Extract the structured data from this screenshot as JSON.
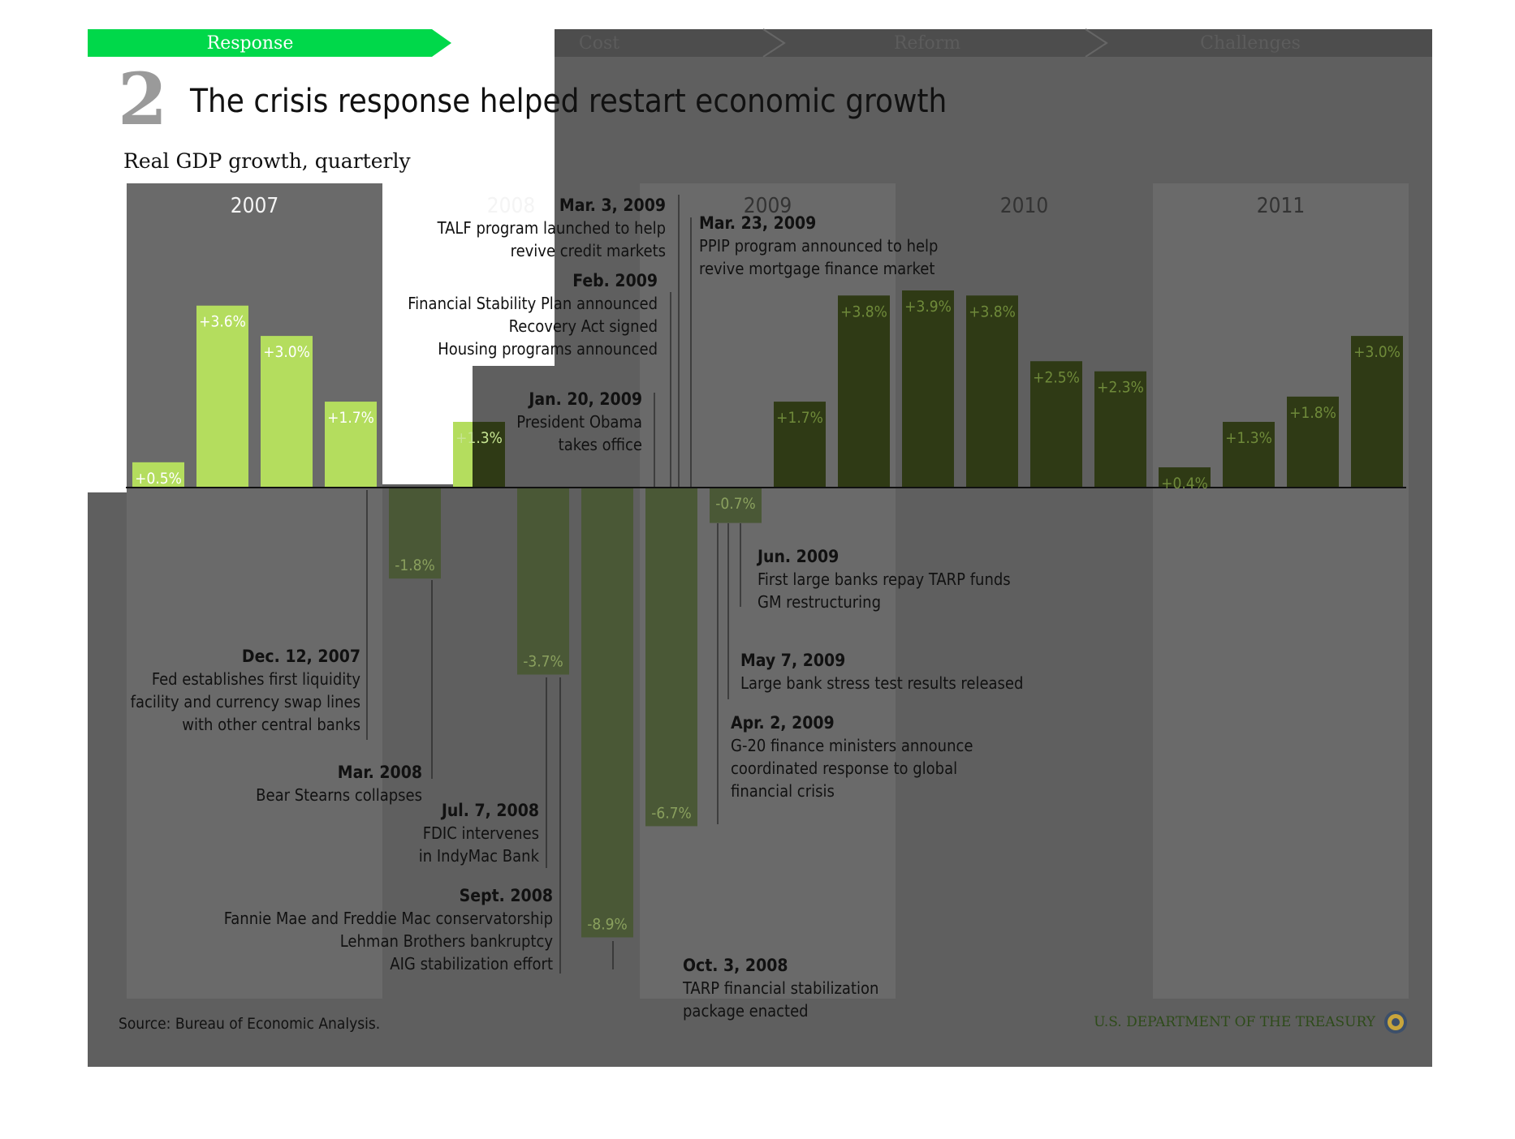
{
  "nav": {
    "tabs": [
      {
        "label": "Response",
        "active": true
      },
      {
        "label": "Cost",
        "active": false
      },
      {
        "label": "Reform",
        "active": false
      },
      {
        "label": "Challenges",
        "active": false
      }
    ]
  },
  "header": {
    "number": "2",
    "title": "The crisis response helped restart economic growth"
  },
  "footer": {
    "source": "Source: Bureau of Economic Analysis.",
    "brand": "U.S. DEPARTMENT OF THE TREASURY"
  },
  "colors": {
    "accent_green": "#00d84a",
    "bar_light": "#b4dd5e",
    "bar_dark": "#2f3a15",
    "overlay": "#5f5f5f",
    "year_panel": "#6a6a6a"
  },
  "chart_data": {
    "type": "bar",
    "title": "",
    "subtitle": "Real GDP growth, quarterly",
    "xlabel": "",
    "ylabel": "",
    "ylim": [
      -9.5,
      4.5
    ],
    "year_groups": [
      "2007",
      "2008",
      "2009",
      "2010",
      "2011"
    ],
    "series": [
      {
        "name": "",
        "values": [
          0.5,
          3.6,
          3.0,
          1.7,
          -1.8,
          1.3,
          -3.7,
          -8.9,
          -6.7,
          -0.7,
          1.7,
          3.8,
          3.9,
          3.8,
          2.5,
          2.3,
          0.4,
          1.3,
          1.8,
          3.0
        ],
        "labels": [
          "+0.5%",
          "+3.6%",
          "+3.0%",
          "+1.7%",
          "-1.8%",
          "+1.3%",
          "-3.7%",
          "-8.9%",
          "-6.7%",
          "-0.7%",
          "+1.7%",
          "+3.8%",
          "+3.9%",
          "+3.8%",
          "+2.5%",
          "+2.3%",
          "+0.4%",
          "+1.3%",
          "+1.8%",
          "+3.0%"
        ],
        "period": [
          "pre-response",
          "pre-response",
          "pre-response",
          "pre-response",
          "pre-response",
          "pre-response",
          "pre-response",
          "pre-response",
          "pre-response",
          "pre-response",
          "response",
          "response",
          "response",
          "response",
          "response",
          "response",
          "response",
          "response",
          "response",
          "response"
        ]
      }
    ],
    "annotations": [
      {
        "date": "Dec. 12, 2007",
        "text": [
          "Fed establishes first liquidity",
          "facility and currency swap lines",
          "with other central banks"
        ]
      },
      {
        "date": "Mar. 2008",
        "text": [
          "Bear Stearns collapses"
        ]
      },
      {
        "date": "Jul. 7, 2008",
        "text": [
          "FDIC intervenes",
          "in IndyMac Bank"
        ]
      },
      {
        "date": "Sept. 2008",
        "text": [
          "Fannie Mae and Freddie Mac conservatorship",
          "Lehman Brothers bankruptcy",
          "AIG stabilization effort"
        ]
      },
      {
        "date": "Oct. 3, 2008",
        "text": [
          "TARP financial stabilization",
          "package enacted"
        ]
      },
      {
        "date": "Jan. 20, 2009",
        "text": [
          "President Obama",
          "takes office"
        ]
      },
      {
        "date": "Feb. 2009",
        "text": [
          "Financial Stability Plan announced",
          "Recovery Act signed",
          "Housing programs announced"
        ]
      },
      {
        "date": "Mar. 3, 2009",
        "text": [
          "TALF program launched to help",
          "revive credit markets"
        ]
      },
      {
        "date": "Mar. 23, 2009",
        "text": [
          "PPIP program announced to help",
          "revive mortgage finance market"
        ]
      },
      {
        "date": "Apr. 2, 2009",
        "text": [
          "G-20 finance ministers announce",
          "coordinated response to global",
          "financial crisis"
        ]
      },
      {
        "date": "May 7, 2009",
        "text": [
          "Large bank stress test results released"
        ]
      },
      {
        "date": "Jun. 2009",
        "text": [
          "First large banks repay TARP funds",
          "GM restructuring"
        ]
      }
    ]
  }
}
